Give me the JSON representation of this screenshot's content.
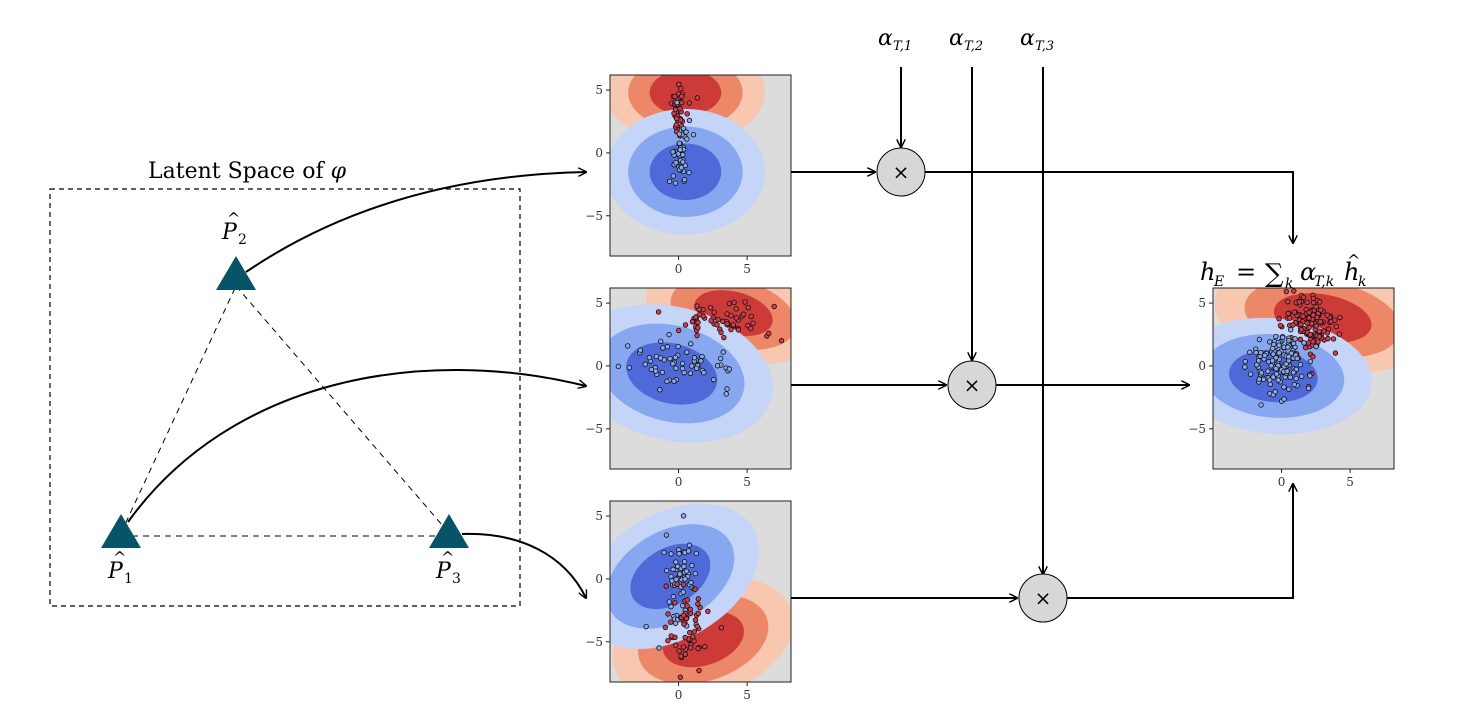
{
  "latent": {
    "title_text": "Latent Space of ",
    "title_symbol": "φ",
    "vertices": [
      {
        "id": "p1",
        "base": "P",
        "hat": "^",
        "sub": "1"
      },
      {
        "id": "p2",
        "base": "P",
        "hat": "^",
        "sub": "2"
      },
      {
        "id": "p3",
        "base": "P",
        "hat": "^",
        "sub": "3"
      }
    ]
  },
  "alphas": [
    {
      "base": "α",
      "sub": "T,1"
    },
    {
      "base": "α",
      "sub": "T,2"
    },
    {
      "base": "α",
      "sub": "T,3"
    }
  ],
  "multiply_symbol": "×",
  "ensemble_formula": {
    "lhs": "h",
    "lhs_sub": "E",
    "eq": "=",
    "sum": "∑",
    "sum_sub": "k",
    "alpha": "α",
    "alpha_sub": "T,k",
    "h": "h",
    "h_hat": "^",
    "h_sub": "k"
  },
  "plots": {
    "x_ticks": [
      "0",
      "5"
    ],
    "y_ticks": [
      "5",
      "0",
      "−5"
    ]
  },
  "colors": {
    "triangle": "#075468",
    "plot_bg": "#dcdcdc",
    "red_outer": "#f7c7b0",
    "red_mid": "#ec8768",
    "red_inner": "#cc3b37",
    "blue_outer": "#c5d5f8",
    "blue_mid": "#87a7f0",
    "blue_inner": "#4f69d8",
    "red_point": "#d33c4c",
    "blue_point": "#8aa8ee",
    "multiplier_fill": "#d7d7d7"
  }
}
